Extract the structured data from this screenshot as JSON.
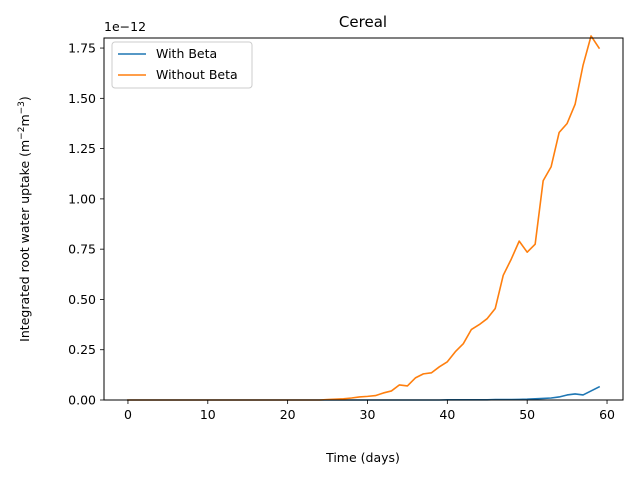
{
  "chart_data": {
    "type": "line",
    "title": "Cereal",
    "xlabel": "Time (days)",
    "ylabel": "Integrated root water uptake (m",
    "ylabel_sup1": "−2",
    "ylabel_mid": "m",
    "ylabel_sup2": "−3",
    "ylabel_end": ")",
    "y_offset_label": "1e−12",
    "y_scale_factor": 1e-12,
    "xlim": [
      -3,
      62
    ],
    "ylim": [
      0,
      1.8
    ],
    "x_ticks": [
      0,
      10,
      20,
      30,
      40,
      50,
      60
    ],
    "y_ticks": [
      0.0,
      0.25,
      0.5,
      0.75,
      1.0,
      1.25,
      1.5,
      1.75
    ],
    "y_tick_labels": [
      "0.00",
      "0.25",
      "0.50",
      "0.75",
      "1.00",
      "1.25",
      "1.50",
      "1.75"
    ],
    "grid": false,
    "legend_position": "top-left",
    "x": [
      0,
      1,
      2,
      3,
      4,
      5,
      6,
      7,
      8,
      9,
      10,
      11,
      12,
      13,
      14,
      15,
      16,
      17,
      18,
      19,
      20,
      21,
      22,
      23,
      24,
      25,
      26,
      27,
      28,
      29,
      30,
      31,
      32,
      33,
      34,
      35,
      36,
      37,
      38,
      39,
      40,
      41,
      42,
      43,
      44,
      45,
      46,
      47,
      48,
      49,
      50,
      51,
      52,
      53,
      54,
      55,
      56,
      57,
      58,
      59
    ],
    "series": [
      {
        "name": "With Beta",
        "color": "#1f77b4",
        "values": [
          0,
          0,
          0,
          0,
          0,
          0,
          0,
          0,
          0,
          0,
          0,
          0,
          0,
          0,
          0,
          0,
          0,
          0,
          0,
          0,
          0,
          0,
          0,
          0,
          0,
          0,
          0,
          0,
          0,
          0,
          0,
          0,
          0,
          0,
          0,
          0,
          0,
          0,
          0,
          0,
          0.001,
          0.001,
          0.001,
          0.001,
          0.001,
          0.001,
          0.002,
          0.002,
          0.002,
          0.003,
          0.004,
          0.006,
          0.008,
          0.01,
          0.015,
          0.025,
          0.03,
          0.025,
          0.045,
          0.065
        ]
      },
      {
        "name": "Without Beta",
        "color": "#ff7f0e",
        "values": [
          0,
          0,
          0,
          0,
          0,
          0,
          0,
          0,
          0,
          0,
          0,
          0,
          0,
          0,
          0,
          0,
          0,
          0,
          0,
          0,
          0,
          0,
          0,
          0,
          0,
          0.002,
          0.004,
          0.006,
          0.01,
          0.015,
          0.018,
          0.022,
          0.035,
          0.045,
          0.075,
          0.07,
          0.11,
          0.13,
          0.135,
          0.165,
          0.19,
          0.24,
          0.28,
          0.35,
          0.375,
          0.405,
          0.455,
          0.62,
          0.7,
          0.79,
          0.735,
          0.775,
          1.09,
          1.16,
          1.33,
          1.375,
          1.47,
          1.665,
          1.81,
          1.75
        ]
      }
    ]
  }
}
